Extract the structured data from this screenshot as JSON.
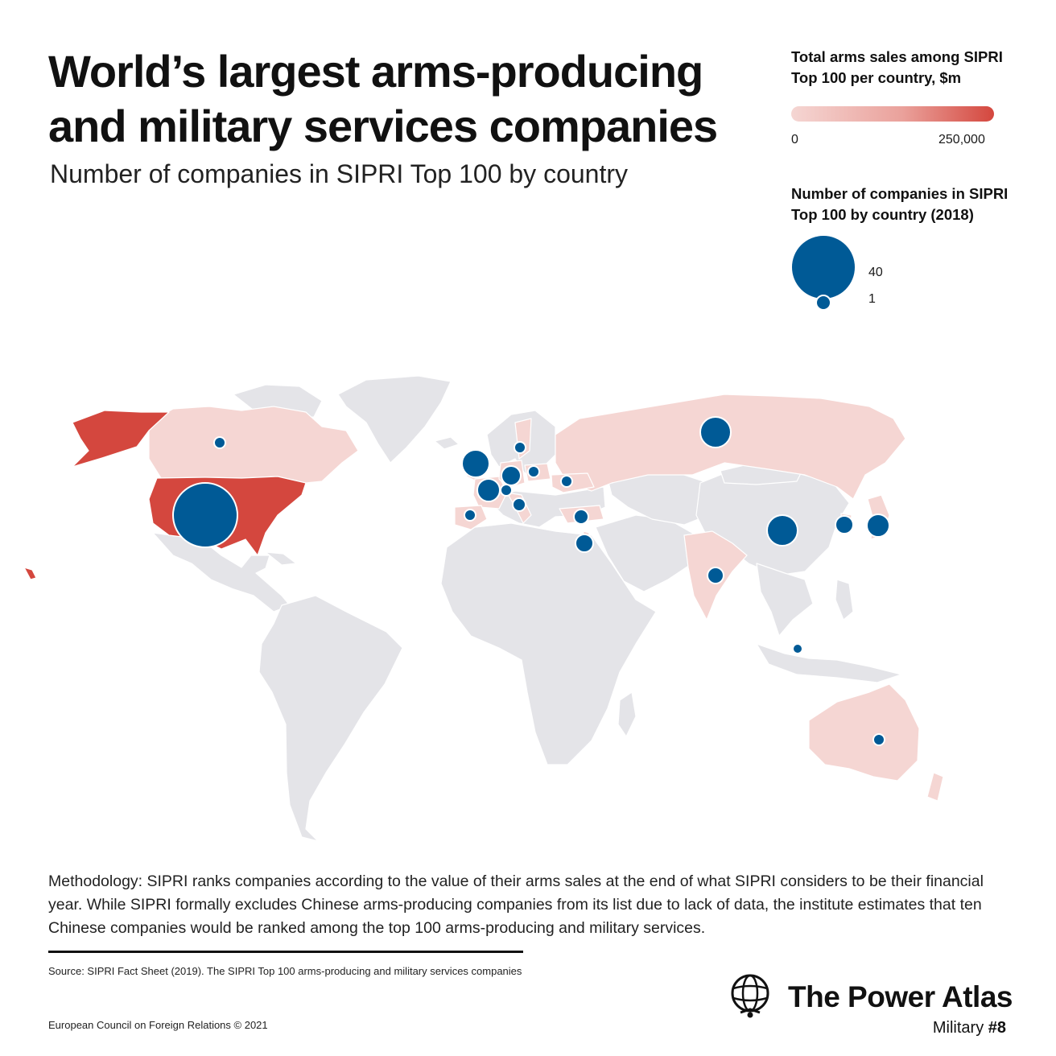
{
  "title": "World’s largest arms-producing and military services companies",
  "subtitle": "Number of companies in SIPRI Top 100 by country",
  "legend": {
    "sales_title": "Total arms sales among SIPRI Top 100 per country, $m",
    "sales_min": "0",
    "sales_max": "250,000",
    "count_title": "Number of companies in SIPRI Top 100 by country (2018)",
    "count_large": "40",
    "count_small": "1"
  },
  "colors": {
    "land": "#e4e4e8",
    "sales_low": "#f5d6d3",
    "sales_high": "#d4473e",
    "bubble": "#005a96",
    "border": "#ffffff"
  },
  "map_data": {
    "type": "choropleth-with-proportional-symbols",
    "countries": [
      {
        "name": "United States",
        "fill": "high",
        "bubble": "large"
      },
      {
        "name": "Canada",
        "fill": "low",
        "bubble": "small"
      },
      {
        "name": "United Kingdom",
        "fill": "low",
        "bubble": "medium"
      },
      {
        "name": "France",
        "fill": "low",
        "bubble": "medium"
      },
      {
        "name": "Germany",
        "fill": "low",
        "bubble": "medium"
      },
      {
        "name": "Switzerland",
        "fill": "low",
        "bubble": "small"
      },
      {
        "name": "Italy",
        "fill": "low",
        "bubble": "small"
      },
      {
        "name": "Spain",
        "fill": "low",
        "bubble": "small"
      },
      {
        "name": "Sweden",
        "fill": "low",
        "bubble": "small"
      },
      {
        "name": "Poland",
        "fill": "low",
        "bubble": "small"
      },
      {
        "name": "Ukraine",
        "fill": "low",
        "bubble": "small"
      },
      {
        "name": "Turkey",
        "fill": "low",
        "bubble": "small"
      },
      {
        "name": "Israel",
        "fill": "low",
        "bubble": "small"
      },
      {
        "name": "Russia",
        "fill": "low",
        "bubble": "medium"
      },
      {
        "name": "India",
        "fill": "low",
        "bubble": "small"
      },
      {
        "name": "China",
        "fill": "none",
        "bubble": "medium"
      },
      {
        "name": "South Korea",
        "fill": "low",
        "bubble": "small"
      },
      {
        "name": "Japan",
        "fill": "low",
        "bubble": "medium"
      },
      {
        "name": "Singapore",
        "fill": "low",
        "bubble": "small"
      },
      {
        "name": "Australia",
        "fill": "low",
        "bubble": "small"
      }
    ]
  },
  "methodology": "Methodology: SIPRI ranks companies according to the value of their arms sales at the end of what SIPRI considers to be their financial year. While SIPRI formally excludes Chinese arms-producing companies from its list due to lack of data, the institute estimates that ten Chinese companies would be ranked among the top 100 arms-producing and military services.",
  "source": "Source: SIPRI Fact Sheet (2019). The SIPRI Top 100 arms-producing and military services companies",
  "copyright": "European Council on Foreign Relations © 2021",
  "brand": {
    "name": "The Power Atlas",
    "series": "Military ",
    "number": "#8",
    "icon": "globe-icon"
  }
}
